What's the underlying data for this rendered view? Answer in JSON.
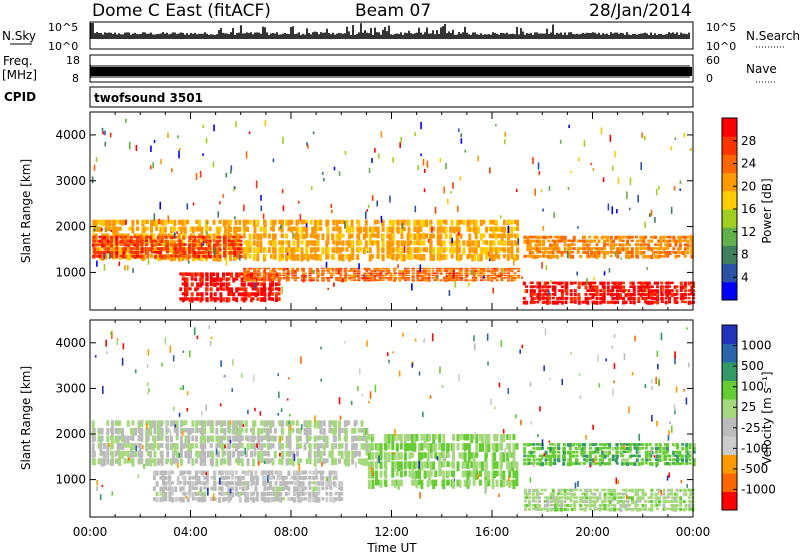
{
  "header": {
    "station": "Dome C East (fitACF)",
    "beam": "Beam 07",
    "date": "28/Jan/2014"
  },
  "panels": {
    "nsky_label": "N.Sky",
    "nsky_ticks": [
      "10^5",
      "10^0"
    ],
    "nsearch_label": "N.Search",
    "nsearch_ticks": [
      "10^5",
      "10^0"
    ],
    "freq_label_line1": "Freq.",
    "freq_label_line2": "[MHz]",
    "freq_ticks": [
      "18",
      "8"
    ],
    "nave_label": "Nave",
    "nave_ticks": [
      "60",
      "0"
    ],
    "cpid_label": "CPID",
    "cpid_value": "twofsound 3501"
  },
  "colors": {
    "power": [
      "#0000ff",
      "#2c52a8",
      "#3e7f5e",
      "#62b04a",
      "#9fd020",
      "#ffcc00",
      "#ff9900",
      "#ff6600",
      "#ff3300",
      "#ff0000"
    ],
    "velocity": [
      "#ff0000",
      "#ff6600",
      "#ff9900",
      "#cccccc",
      "#bbbbbb",
      "#a6d97e",
      "#66cc33",
      "#339966",
      "#2a66aa",
      "#2233bb"
    ]
  },
  "chart_data": [
    {
      "type": "heatmap",
      "name": "power",
      "xlabel": "",
      "ylabel": "Slant Range [km]",
      "xlim": [
        "00:00",
        "24:00"
      ],
      "ylim": [
        180,
        4500
      ],
      "y_ticks": [
        "1000",
        "2000",
        "3000",
        "4000"
      ],
      "colorbar": {
        "label": "Power [dB]",
        "range": [
          0,
          32
        ],
        "ticks": [
          "4",
          "8",
          "12",
          "16",
          "20",
          "24",
          "28"
        ]
      },
      "bands": [
        {
          "t0": 0.0,
          "t1": 17.0,
          "r0": 1250,
          "r1": 2150,
          "value": 20
        },
        {
          "t0": 0.0,
          "t1": 6.0,
          "r0": 1300,
          "r1": 1800,
          "value": 27
        },
        {
          "t0": 3.5,
          "t1": 7.5,
          "r0": 350,
          "r1": 1000,
          "value": 30
        },
        {
          "t0": 6.0,
          "t1": 17.0,
          "r0": 800,
          "r1": 1100,
          "value": 24
        },
        {
          "t0": 17.2,
          "t1": 24.0,
          "r0": 300,
          "r1": 800,
          "value": 30
        },
        {
          "t0": 17.2,
          "t1": 24.0,
          "r0": 1300,
          "r1": 1800,
          "value": 22
        }
      ]
    },
    {
      "type": "heatmap",
      "name": "velocity",
      "xlabel": "Time UT",
      "ylabel": "Slant Range [km]",
      "x_ticks": [
        "00:00",
        "04:00",
        "08:00",
        "12:00",
        "16:00",
        "20:00",
        "00:00"
      ],
      "xlim": [
        "00:00",
        "24:00"
      ],
      "ylim": [
        180,
        4500
      ],
      "y_ticks": [
        "1000",
        "2000",
        "3000",
        "4000"
      ],
      "colorbar": {
        "label": "Velocity [m s⁻¹]",
        "range": [
          -1500,
          1500
        ],
        "ticks": [
          "1000",
          "500",
          "100",
          "25",
          "-25",
          "-100",
          "-500",
          "-1000"
        ]
      },
      "bands": [
        {
          "t0": 0.0,
          "t1": 11.0,
          "r0": 1300,
          "r1": 2300,
          "value": 0
        },
        {
          "t0": 2.5,
          "t1": 10.0,
          "r0": 500,
          "r1": 1200,
          "value": -200
        },
        {
          "t0": 11.0,
          "t1": 17.0,
          "r0": 800,
          "r1": 2000,
          "value": 300
        },
        {
          "t0": 17.2,
          "t1": 24.0,
          "r0": 300,
          "r1": 800,
          "value": 150
        },
        {
          "t0": 17.2,
          "t1": 24.0,
          "r0": 1300,
          "r1": 1800,
          "value": 500
        }
      ]
    }
  ]
}
